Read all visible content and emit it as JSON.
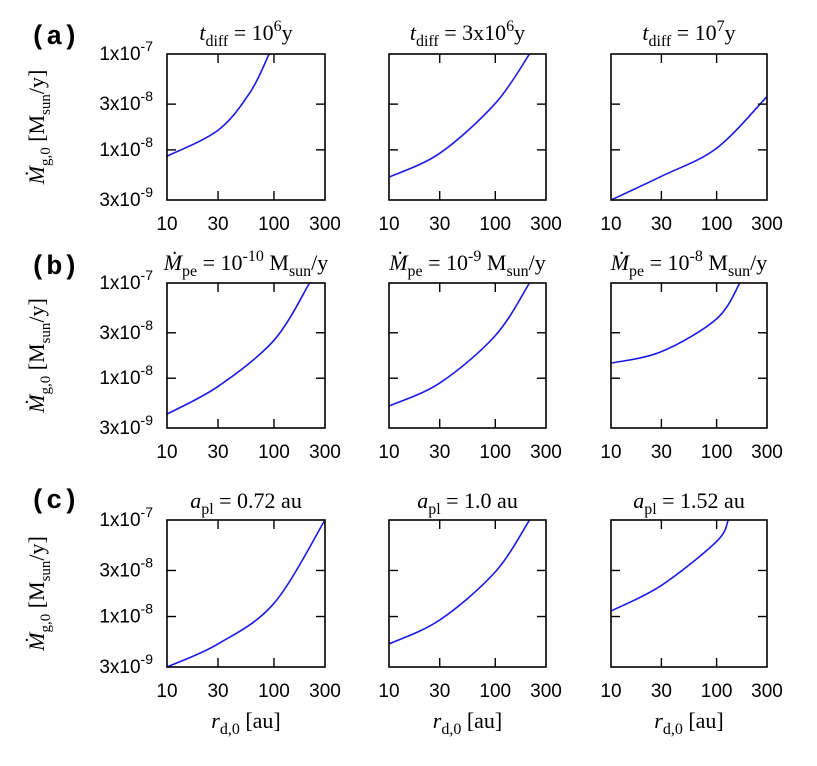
{
  "figure": {
    "row_labels": [
      "(a)",
      "(b)",
      "(c)"
    ],
    "ylabel": [
      [
        "i",
        "Ṁ"
      ],
      [
        "sub",
        "g,0"
      ],
      [
        "n",
        " [M"
      ],
      [
        "sub",
        "sun"
      ],
      [
        "n",
        "/y]"
      ]
    ],
    "xlabel": [
      [
        "i",
        "r"
      ],
      [
        "sub",
        "d,0"
      ],
      [
        "n",
        " [au]"
      ]
    ],
    "line_color": "#1a1ae6"
  },
  "chart_data": [
    {
      "type": "line",
      "row": 0,
      "col": 0,
      "title": [
        [
          "i",
          "t"
        ],
        [
          "sub",
          "diff"
        ],
        [
          "n",
          " = 10"
        ],
        [
          "sup",
          "6"
        ],
        [
          "n",
          "y"
        ]
      ],
      "xscale": "log",
      "yscale": "log",
      "xlim": [
        10,
        300
      ],
      "ylim": [
        3e-09,
        1e-07
      ],
      "xticks": [
        [
          "10",
          10
        ],
        [
          "30",
          30
        ],
        [
          "100",
          100
        ],
        [
          "300",
          300
        ]
      ],
      "yticks": [
        [
          [
            "1x10",
            "-7"
          ],
          1e-07
        ],
        [
          [
            "3x10",
            "-8"
          ],
          3e-08
        ],
        [
          [
            "1x10",
            "-8"
          ],
          1e-08
        ],
        [
          [
            "3x10",
            "-9"
          ],
          3e-09
        ]
      ],
      "points": [
        [
          10,
          8.6e-09
        ],
        [
          30,
          1.6e-08
        ],
        [
          60,
          4e-08
        ],
        [
          90,
          1e-07
        ]
      ]
    },
    {
      "type": "line",
      "row": 0,
      "col": 1,
      "title": [
        [
          "i",
          "t"
        ],
        [
          "sub",
          "diff"
        ],
        [
          "n",
          " = 3x10"
        ],
        [
          "sup",
          "6"
        ],
        [
          "n",
          "y"
        ]
      ],
      "xscale": "log",
      "yscale": "log",
      "xlim": [
        10,
        300
      ],
      "ylim": [
        3e-09,
        1e-07
      ],
      "xticks": [
        [
          "10",
          10
        ],
        [
          "30",
          30
        ],
        [
          "100",
          100
        ],
        [
          "300",
          300
        ]
      ],
      "points": [
        [
          10,
          5.2e-09
        ],
        [
          30,
          9.2e-09
        ],
        [
          100,
          3.05e-08
        ],
        [
          210,
          1e-07
        ]
      ]
    },
    {
      "type": "line",
      "row": 0,
      "col": 2,
      "title": [
        [
          "i",
          "t"
        ],
        [
          "sub",
          "diff"
        ],
        [
          "n",
          " = 10"
        ],
        [
          "sup",
          "7"
        ],
        [
          "n",
          "y"
        ]
      ],
      "xscale": "log",
      "yscale": "log",
      "xlim": [
        10,
        300
      ],
      "ylim": [
        3e-09,
        1e-07
      ],
      "xticks": [
        [
          "10",
          10
        ],
        [
          "30",
          30
        ],
        [
          "100",
          100
        ],
        [
          "300",
          300
        ]
      ],
      "points": [
        [
          10,
          3e-09
        ],
        [
          30,
          5.3e-09
        ],
        [
          100,
          1.04e-08
        ],
        [
          300,
          3.6e-08
        ]
      ]
    },
    {
      "type": "line",
      "row": 1,
      "col": 0,
      "title": [
        [
          "i",
          "Ṁ"
        ],
        [
          "sub",
          "pe"
        ],
        [
          "n",
          " = 10"
        ],
        [
          "sup",
          "-10"
        ],
        [
          "n",
          " M"
        ],
        [
          "sub",
          "sun"
        ],
        [
          "n",
          "/y"
        ]
      ],
      "xscale": "log",
      "yscale": "log",
      "xlim": [
        10,
        300
      ],
      "ylim": [
        3e-09,
        1e-07
      ],
      "xticks": [
        [
          "10",
          10
        ],
        [
          "30",
          30
        ],
        [
          "100",
          100
        ],
        [
          "300",
          300
        ]
      ],
      "yticks": [
        [
          [
            "1x10",
            "-7"
          ],
          1e-07
        ],
        [
          [
            "3x10",
            "-8"
          ],
          3e-08
        ],
        [
          [
            "1x10",
            "-8"
          ],
          1e-08
        ],
        [
          [
            "3x10",
            "-9"
          ],
          3e-09
        ]
      ],
      "points": [
        [
          10,
          4.2e-09
        ],
        [
          30,
          8.2e-09
        ],
        [
          100,
          2.5e-08
        ],
        [
          215,
          1e-07
        ]
      ]
    },
    {
      "type": "line",
      "row": 1,
      "col": 1,
      "title": [
        [
          "i",
          "Ṁ"
        ],
        [
          "sub",
          "pe"
        ],
        [
          "n",
          " = 10"
        ],
        [
          "sup",
          "-9"
        ],
        [
          "n",
          " M"
        ],
        [
          "sub",
          "sun"
        ],
        [
          "n",
          "/y"
        ]
      ],
      "xscale": "log",
      "yscale": "log",
      "xlim": [
        10,
        300
      ],
      "ylim": [
        3e-09,
        1e-07
      ],
      "xticks": [
        [
          "10",
          10
        ],
        [
          "30",
          30
        ],
        [
          "100",
          100
        ],
        [
          "300",
          300
        ]
      ],
      "points": [
        [
          10,
          5.1e-09
        ],
        [
          30,
          8.9e-09
        ],
        [
          100,
          2.8e-08
        ],
        [
          210,
          1e-07
        ]
      ]
    },
    {
      "type": "line",
      "row": 1,
      "col": 2,
      "title": [
        [
          "i",
          "Ṁ"
        ],
        [
          "sub",
          "pe"
        ],
        [
          "n",
          " = 10"
        ],
        [
          "sup",
          "-8"
        ],
        [
          "n",
          " M"
        ],
        [
          "sub",
          "sun"
        ],
        [
          "n",
          "/y"
        ]
      ],
      "xscale": "log",
      "yscale": "log",
      "xlim": [
        10,
        300
      ],
      "ylim": [
        3e-09,
        1e-07
      ],
      "xticks": [
        [
          "10",
          10
        ],
        [
          "30",
          30
        ],
        [
          "100",
          100
        ],
        [
          "300",
          300
        ]
      ],
      "points": [
        [
          10,
          1.44e-08
        ],
        [
          30,
          1.9e-08
        ],
        [
          100,
          4.2e-08
        ],
        [
          166,
          1e-07
        ]
      ]
    },
    {
      "type": "line",
      "row": 2,
      "col": 0,
      "title": [
        [
          "i",
          "a"
        ],
        [
          "sub",
          "pl"
        ],
        [
          "n",
          " = 0.72 au"
        ]
      ],
      "xscale": "log",
      "yscale": "log",
      "xlim": [
        10,
        300
      ],
      "ylim": [
        3e-09,
        1e-07
      ],
      "xticks": [
        [
          "10",
          10
        ],
        [
          "30",
          30
        ],
        [
          "100",
          100
        ],
        [
          "300",
          300
        ]
      ],
      "yticks": [
        [
          [
            "1x10",
            "-7"
          ],
          1e-07
        ],
        [
          [
            "3x10",
            "-8"
          ],
          3e-08
        ],
        [
          [
            "1x10",
            "-8"
          ],
          1e-08
        ],
        [
          [
            "3x10",
            "-9"
          ],
          3e-09
        ]
      ],
      "points": [
        [
          10,
          3e-09
        ],
        [
          30,
          5.2e-09
        ],
        [
          100,
          1.37e-08
        ],
        [
          300,
          1e-07
        ]
      ]
    },
    {
      "type": "line",
      "row": 2,
      "col": 1,
      "title": [
        [
          "i",
          "a"
        ],
        [
          "sub",
          "pl"
        ],
        [
          "n",
          " = 1.0 au"
        ]
      ],
      "xscale": "log",
      "yscale": "log",
      "xlim": [
        10,
        300
      ],
      "ylim": [
        3e-09,
        1e-07
      ],
      "xticks": [
        [
          "10",
          10
        ],
        [
          "30",
          30
        ],
        [
          "100",
          100
        ],
        [
          "300",
          300
        ]
      ],
      "points": [
        [
          10,
          5.2e-09
        ],
        [
          30,
          9.2e-09
        ],
        [
          100,
          2.9e-08
        ],
        [
          210,
          1e-07
        ]
      ]
    },
    {
      "type": "line",
      "row": 2,
      "col": 2,
      "title": [
        [
          "i",
          "a"
        ],
        [
          "sub",
          "pl"
        ],
        [
          "n",
          " = 1.52 au"
        ]
      ],
      "xscale": "log",
      "yscale": "log",
      "xlim": [
        10,
        300
      ],
      "ylim": [
        3e-09,
        1e-07
      ],
      "xticks": [
        [
          "10",
          10
        ],
        [
          "30",
          30
        ],
        [
          "100",
          100
        ],
        [
          "300",
          300
        ]
      ],
      "points": [
        [
          10,
          1.14e-08
        ],
        [
          30,
          2.1e-08
        ],
        [
          100,
          6e-08
        ],
        [
          129,
          1e-07
        ]
      ]
    }
  ]
}
